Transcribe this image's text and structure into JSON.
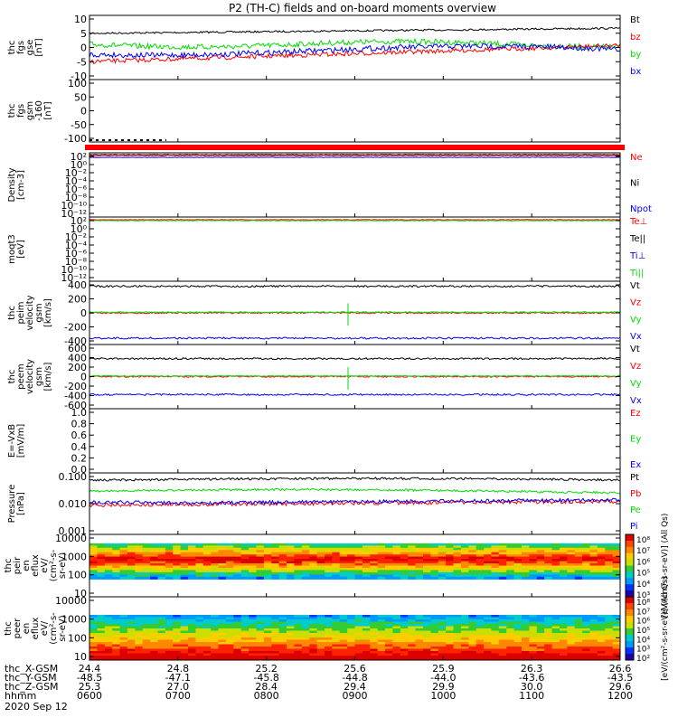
{
  "title": "P2 (TH-C) fields and on-board moments overview",
  "date": "2020 Sep 12",
  "ephemeris": {
    "labels": [
      "thc_X-GSM",
      "thc_Y-GSM",
      "thc_Z-GSM",
      "hhmm"
    ],
    "rows": [
      [
        "24.4",
        "24.8",
        "25.2",
        "25.6",
        "25.9",
        "26.3",
        "26.6"
      ],
      [
        "-48.5",
        "-47.1",
        "-45.8",
        "-44.8",
        "-44.0",
        "-43.6",
        "-43.5"
      ],
      [
        "25.3",
        "27.0",
        "28.4",
        "29.4",
        "29.9",
        "30.0",
        "29.6"
      ],
      [
        "0600",
        "0700",
        "0800",
        "0900",
        "1000",
        "1100",
        "1200"
      ]
    ]
  },
  "colors": {
    "black": "#000000",
    "red": "#ff0000",
    "green": "#00dd00",
    "blue": "#0000ff"
  },
  "chart_data": [
    {
      "type": "line",
      "ylabel": [
        "thc",
        "fgs",
        "gse",
        "[nT]"
      ],
      "yticks": [
        "10",
        "5",
        "0",
        "-5",
        "-10"
      ],
      "ylim": [
        -10,
        10
      ],
      "legend": [
        {
          "name": "Bt",
          "color": "black"
        },
        {
          "name": "bz",
          "color": "red"
        },
        {
          "name": "by",
          "color": "green"
        },
        {
          "name": "bx",
          "color": "blue"
        }
      ]
    },
    {
      "type": "line",
      "ylabel": [
        "thc",
        "fgs",
        "gsm",
        "-160",
        "[nT]"
      ],
      "yticks": [
        "100",
        "50",
        "0",
        "-50",
        "-100"
      ],
      "ylim": [
        -130,
        100
      ],
      "legend": []
    },
    {
      "type": "line",
      "ylabel": [
        "Density",
        "[cm-3]"
      ],
      "yticks": [
        "10²",
        "10⁰",
        "10⁻²",
        "10⁻⁴",
        "10⁻⁶",
        "10⁻⁸",
        "10⁻¹⁰",
        "10⁻¹²"
      ],
      "scale": "log",
      "legend": [
        {
          "name": "Ne",
          "color": "red"
        },
        {
          "name": "Ni",
          "color": "black"
        },
        {
          "name": "Npot",
          "color": "blue"
        }
      ]
    },
    {
      "type": "line",
      "ylabel": [
        "moqt3",
        "[eV]"
      ],
      "yticks": [
        "10²",
        "10⁰",
        "10⁻²",
        "10⁻⁴",
        "10⁻⁶",
        "10⁻⁸",
        "10⁻¹⁰",
        "10⁻¹²"
      ],
      "scale": "log",
      "legend": [
        {
          "name": "Te⊥",
          "color": "red"
        },
        {
          "name": "Te||",
          "color": "black"
        },
        {
          "name": "Ti⊥",
          "color": "blue"
        },
        {
          "name": "Ti||",
          "color": "green"
        }
      ]
    },
    {
      "type": "line",
      "ylabel": [
        "thc",
        "peim",
        "velocity",
        "gsm",
        "[km/s]"
      ],
      "yticks": [
        "400",
        "200",
        "0",
        "-200",
        "-400"
      ],
      "ylim": [
        -400,
        400
      ],
      "legend": [
        {
          "name": "Vt",
          "color": "black"
        },
        {
          "name": "Vz",
          "color": "red"
        },
        {
          "name": "Vy",
          "color": "green"
        },
        {
          "name": "Vx",
          "color": "blue"
        }
      ]
    },
    {
      "type": "line",
      "ylabel": [
        "thc",
        "peem",
        "velocity",
        "gsm",
        "[km/s]"
      ],
      "yticks": [
        "600",
        "400",
        "200",
        "0",
        "-200",
        "-400",
        "-600"
      ],
      "ylim": [
        -600,
        600
      ],
      "legend": [
        {
          "name": "Vt",
          "color": "black"
        },
        {
          "name": "Vz",
          "color": "red"
        },
        {
          "name": "Vy",
          "color": "green"
        },
        {
          "name": "Vx",
          "color": "blue"
        }
      ]
    },
    {
      "type": "line",
      "ylabel": [
        "E=-VxB",
        "[mV/m]"
      ],
      "yticks": [
        "1.0",
        "0.8",
        "0.6",
        "0.4",
        "0.2",
        "0.0"
      ],
      "ylim": [
        0,
        1
      ],
      "legend": [
        {
          "name": "Ez",
          "color": "red"
        },
        {
          "name": "Ey",
          "color": "green"
        },
        {
          "name": "Ex",
          "color": "blue"
        }
      ]
    },
    {
      "type": "line",
      "ylabel": [
        "Pressure",
        "[nPa]"
      ],
      "yticks": [
        "0.100",
        "0.010",
        "0.001"
      ],
      "scale": "log",
      "ylim": [
        0.001,
        0.1
      ],
      "legend": [
        {
          "name": "Pt",
          "color": "black"
        },
        {
          "name": "Pb",
          "color": "red"
        },
        {
          "name": "Pe",
          "color": "green"
        },
        {
          "name": "Pi",
          "color": "blue"
        }
      ]
    },
    {
      "type": "heatmap",
      "ylabel": [
        "thc",
        "peir",
        "en",
        "eflux",
        "eV/",
        "(cm²-s-",
        "sr-eV)"
      ],
      "yticks": [
        "10000",
        "1000",
        "100",
        "10"
      ],
      "scale": "log",
      "colorbar": {
        "ticks": [
          "10⁸",
          "10⁷",
          "10⁶",
          "10⁵",
          "10⁴",
          "10³"
        ],
        "label": "[eV/(cm²-s-sr-eV)] (All Qs)"
      }
    },
    {
      "type": "heatmap",
      "ylabel": [
        "thc",
        "peer",
        "en",
        "eflux",
        "eV/",
        "(cm²-s-",
        "sr-eV)"
      ],
      "yticks": [
        "10000",
        "1000",
        "100",
        "10"
      ],
      "scale": "log",
      "colorbar": {
        "ticks": [
          "10⁸",
          "10⁷",
          "10⁶",
          "10⁵",
          "10⁴",
          "10³",
          "10²"
        ],
        "label": "[eV/(cm²-s-sr-eV)] (All Qs)"
      }
    }
  ]
}
